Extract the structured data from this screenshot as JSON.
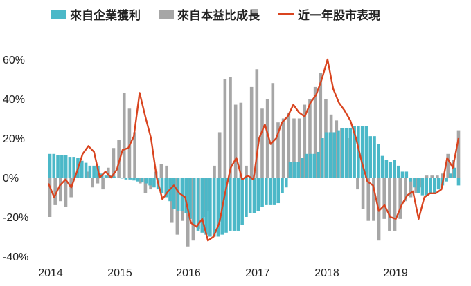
{
  "chart_data": {
    "type": "bar",
    "title": "",
    "xlabel": "",
    "ylabel": "",
    "ylim": [
      -40,
      60
    ],
    "y_ticks": [
      "60%",
      "40%",
      "20%",
      "0%",
      "-20%",
      "-40%"
    ],
    "y_tick_values": [
      60,
      40,
      20,
      0,
      -20,
      -40
    ],
    "x_tick_labels": [
      "2014",
      "2015",
      "2016",
      "2017",
      "2018",
      "2019"
    ],
    "x_start": "2014-01",
    "x_end": "2019-12",
    "legend_placement": "top",
    "grid": false,
    "series": [
      {
        "name": "來自企業獲利",
        "type": "bar",
        "color": "#4BB8C8",
        "values": [
          12,
          12,
          11.5,
          11.5,
          11.5,
          10.5,
          10.5,
          10,
          8.5,
          7.5,
          6,
          6,
          6,
          2,
          1,
          1,
          0.5,
          0,
          -0.5,
          -1,
          -1,
          -1.5,
          -2,
          -2.5,
          -3,
          -4,
          -5,
          -6,
          -8,
          -10,
          -12,
          -16,
          -17,
          -17,
          -18,
          -21,
          -24,
          -27,
          -28,
          -29,
          -30,
          -30,
          -30,
          -29,
          -28,
          -27,
          -27,
          -27,
          -24,
          -20,
          -18,
          -18,
          -17,
          -15,
          -14,
          -14,
          -14,
          -13,
          -8,
          -5,
          8,
          8,
          8,
          10,
          12,
          12,
          12,
          13,
          20,
          23,
          23,
          23,
          24,
          25,
          25,
          25,
          26,
          26,
          26,
          26,
          21,
          21,
          17,
          11,
          9,
          8,
          9,
          6,
          3,
          3,
          -2,
          -5,
          -8,
          -9,
          -9,
          -8,
          -8,
          -6,
          -4,
          -2,
          2,
          5,
          -4
        ],
        "note_values": "monthly 2014-01 to 2019-12 (estimated, %)"
      },
      {
        "name": "來自本益比成長",
        "type": "bar",
        "color": "#A6A6A6",
        "values": [
          -20,
          -14,
          -12,
          -15,
          -10,
          2,
          6,
          3,
          -5,
          -3,
          -6,
          5,
          15,
          19,
          43,
          35,
          23,
          -3,
          -8,
          -6,
          3,
          7,
          6,
          -23,
          -29,
          -22,
          -35,
          -32,
          -26,
          -20,
          -17,
          6,
          23,
          50,
          51,
          37,
          38,
          6,
          46,
          55,
          35,
          40,
          48,
          28,
          30,
          33,
          30,
          30,
          37,
          40,
          46,
          53,
          40,
          32,
          29,
          25,
          20,
          0,
          -6,
          -16,
          -22,
          -22,
          -32,
          -21,
          -27,
          -27,
          -21,
          -12,
          -10,
          -8,
          -5,
          1,
          1,
          1,
          2,
          12,
          9,
          24
        ],
        "note_values": "estimated, %"
      },
      {
        "name": "近一年股市表現",
        "type": "line",
        "color": "#D9441F",
        "values": [
          -3,
          -10,
          -4,
          -1,
          -5,
          3,
          12,
          16,
          13,
          0,
          3,
          0,
          4,
          14,
          15,
          21,
          43,
          31,
          20,
          0,
          -11,
          -7,
          -4,
          -8,
          -10,
          -23,
          -25,
          -21,
          -32,
          -30,
          -23,
          -8,
          5,
          10,
          -1,
          1,
          -1,
          20,
          27,
          17,
          20,
          28,
          31,
          37,
          33,
          31,
          38,
          42,
          50,
          60,
          45,
          38,
          34,
          29,
          20,
          8,
          -2,
          -4,
          -17,
          -14,
          -20,
          -21,
          -14,
          -9,
          -7,
          -21,
          -10,
          -8,
          -8,
          -6,
          10,
          5,
          20
        ],
        "note_values": "estimated, %"
      }
    ]
  }
}
